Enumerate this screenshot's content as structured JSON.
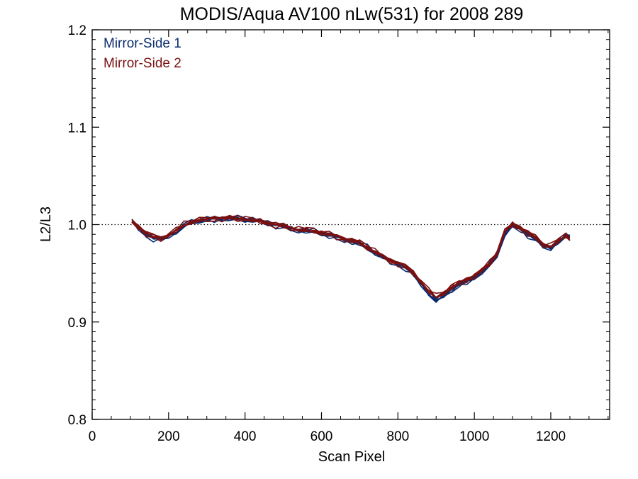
{
  "chart_data": {
    "type": "line",
    "title": "MODIS/Aqua AV100 nLw(531) for 2008 289",
    "xlabel": "Scan Pixel",
    "ylabel": "L2/L3",
    "xlim": [
      0,
      1354
    ],
    "ylim": [
      0.8,
      1.2
    ],
    "x_ticks": [
      0,
      200,
      400,
      600,
      800,
      1000,
      1200
    ],
    "x_tick_labels": [
      "0",
      "200",
      "400",
      "600",
      "800",
      "1000",
      "1200"
    ],
    "y_ticks": [
      0.8,
      0.9,
      1.0,
      1.1,
      1.2
    ],
    "y_tick_labels": [
      "0.8",
      "0.9",
      "1.0",
      "1.1",
      "1.2"
    ],
    "reference_line": {
      "y": 1.0,
      "style": "dotted"
    },
    "grid": false,
    "legend": {
      "position": "top-left",
      "framed": false
    },
    "x": [
      104,
      120,
      140,
      160,
      180,
      200,
      220,
      240,
      260,
      280,
      300,
      320,
      340,
      360,
      380,
      400,
      420,
      440,
      460,
      480,
      500,
      520,
      540,
      560,
      580,
      600,
      620,
      640,
      660,
      680,
      700,
      720,
      740,
      760,
      780,
      800,
      820,
      840,
      860,
      880,
      900,
      920,
      940,
      960,
      980,
      1000,
      1020,
      1040,
      1060,
      1080,
      1100,
      1120,
      1140,
      1160,
      1180,
      1200,
      1220,
      1240,
      1250
    ],
    "series": [
      {
        "name": "Mirror-Side 1",
        "color": "#0b2d6e",
        "values": [
          1.003,
          0.997,
          0.99,
          0.986,
          0.985,
          0.989,
          0.992,
          0.998,
          1.002,
          1.004,
          1.005,
          1.006,
          1.007,
          1.006,
          1.006,
          1.005,
          1.004,
          1.003,
          1.002,
          1.0,
          0.998,
          0.996,
          0.994,
          0.993,
          0.992,
          0.991,
          0.989,
          0.987,
          0.985,
          0.983,
          0.98,
          0.976,
          0.971,
          0.966,
          0.962,
          0.96,
          0.956,
          0.949,
          0.94,
          0.929,
          0.921,
          0.927,
          0.933,
          0.938,
          0.942,
          0.946,
          0.951,
          0.958,
          0.969,
          0.99,
          0.998,
          0.996,
          0.99,
          0.985,
          0.978,
          0.976,
          0.982,
          0.987,
          0.988
        ]
      },
      {
        "name": "Mirror-Side 2",
        "color": "#7a1010",
        "values": [
          1.002,
          0.998,
          0.992,
          0.988,
          0.986,
          0.99,
          0.994,
          0.999,
          1.003,
          1.005,
          1.005,
          1.007,
          1.007,
          1.007,
          1.006,
          1.006,
          1.004,
          1.003,
          1.002,
          1.0,
          0.999,
          0.997,
          0.995,
          0.994,
          0.993,
          0.992,
          0.99,
          0.988,
          0.986,
          0.984,
          0.981,
          0.977,
          0.972,
          0.967,
          0.963,
          0.961,
          0.957,
          0.951,
          0.942,
          0.932,
          0.925,
          0.93,
          0.936,
          0.94,
          0.944,
          0.948,
          0.953,
          0.96,
          0.971,
          0.993,
          1.0,
          0.997,
          0.992,
          0.987,
          0.98,
          0.978,
          0.983,
          0.988,
          0.986
        ]
      }
    ]
  }
}
